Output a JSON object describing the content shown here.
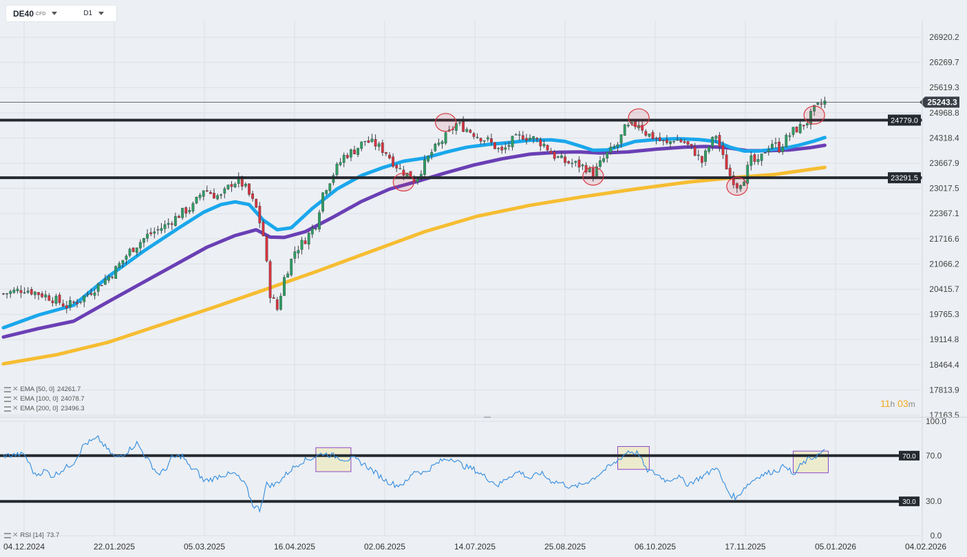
{
  "toolbar": {
    "symbol": "DE40",
    "symbol_tag": "CFD",
    "timeframe": "D1"
  },
  "price_panel": {
    "y_ticks": [
      "26920.2",
      "26269.7",
      "25619.3",
      "24968.8",
      "24318.4",
      "23667.9",
      "23017.5",
      "22367.1",
      "21716.6",
      "21066.2",
      "20415.7",
      "19765.3",
      "19114.8",
      "18464.4",
      "17813.9",
      "17163.5"
    ],
    "last_price": "25243.3",
    "levels": [
      {
        "value": 24779.0,
        "label": "24779.0"
      },
      {
        "value": 23291.5,
        "label": "23291.5"
      }
    ],
    "legend": [
      {
        "name": "EMA",
        "params": "[50,  0]",
        "value": "24261.7"
      },
      {
        "name": "EMA",
        "params": "[100,  0]",
        "value": "24078.7"
      },
      {
        "name": "EMA",
        "params": "[200,  0]",
        "value": "23496.3"
      }
    ],
    "countdown": {
      "hours": "11",
      "h_unit": "h",
      "minutes": "03",
      "m_unit": "m"
    }
  },
  "rsi_panel": {
    "y_ticks": [
      "100.0",
      "70.0",
      "30.0",
      "0.0"
    ],
    "levels": [
      {
        "value": 70,
        "label": "70.0"
      },
      {
        "value": 30,
        "label": "30.0"
      }
    ],
    "legend": {
      "name": "RSI",
      "params": "[14]",
      "value": "73.7"
    }
  },
  "x_ticks": [
    "04.12.2024",
    "22.01.2025",
    "05.03.2025",
    "16.04.2025",
    "02.06.2025",
    "14.07.2025",
    "25.08.2025",
    "06.10.2025",
    "17.11.2025",
    "05.01.2026",
    "04.02.2026"
  ],
  "colors": {
    "ema50": "#1aa7ec",
    "ema100": "#6a3fb5",
    "ema200": "#f6bd32",
    "candle_up": "#2e9e63",
    "candle_down": "#d8343f",
    "rsi": "#2f8ce0",
    "level_line": "#252a30",
    "marker_circle": "#d8343f",
    "marker_box": "#8a47c9"
  },
  "chart_data": {
    "type": "candlestick",
    "x_range": [
      "04.12.2024",
      "04.02.2026"
    ],
    "ylim": [
      17163.5,
      27250
    ],
    "candle_path": [
      [
        0,
        20300
      ],
      [
        6,
        20420
      ],
      [
        12,
        20250
      ],
      [
        15,
        20130
      ],
      [
        18,
        19980
      ],
      [
        22,
        20150
      ],
      [
        26,
        20440
      ],
      [
        31,
        20820
      ],
      [
        36,
        21400
      ],
      [
        41,
        21800
      ],
      [
        46,
        22050
      ],
      [
        51,
        22400
      ],
      [
        54,
        22550
      ],
      [
        57,
        23000
      ],
      [
        60,
        22850
      ],
      [
        62,
        22800
      ],
      [
        65,
        23150
      ],
      [
        67,
        23220
      ],
      [
        69,
        23020
      ],
      [
        72,
        22500
      ],
      [
        74,
        21800
      ],
      [
        76,
        20300
      ],
      [
        78,
        19900
      ],
      [
        80,
        20700
      ],
      [
        83,
        21400
      ],
      [
        86,
        21700
      ],
      [
        89,
        22100
      ],
      [
        91,
        22900
      ],
      [
        94,
        23400
      ],
      [
        97,
        23850
      ],
      [
        100,
        24000
      ],
      [
        103,
        24250
      ],
      [
        106,
        24150
      ],
      [
        109,
        23950
      ],
      [
        111,
        23700
      ],
      [
        113,
        23500
      ],
      [
        115,
        23380
      ],
      [
        117,
        23250
      ],
      [
        119,
        23500
      ],
      [
        122,
        23950
      ],
      [
        125,
        24250
      ],
      [
        127,
        24450
      ],
      [
        129,
        24680
      ],
      [
        132,
        24550
      ],
      [
        135,
        24380
      ],
      [
        138,
        24250
      ],
      [
        140,
        24100
      ],
      [
        142,
        23950
      ],
      [
        145,
        24250
      ],
      [
        148,
        24380
      ],
      [
        151,
        24300
      ],
      [
        154,
        24150
      ],
      [
        157,
        23850
      ],
      [
        160,
        23700
      ],
      [
        163,
        23650
      ],
      [
        166,
        23550
      ],
      [
        168,
        23380
      ],
      [
        170,
        23650
      ],
      [
        172,
        23900
      ],
      [
        175,
        24150
      ],
      [
        177,
        24550
      ],
      [
        179,
        24620
      ],
      [
        181,
        24700
      ],
      [
        183,
        24450
      ],
      [
        186,
        24300
      ],
      [
        189,
        24150
      ],
      [
        191,
        24300
      ],
      [
        194,
        24200
      ],
      [
        197,
        23950
      ],
      [
        199,
        23700
      ],
      [
        201,
        24100
      ],
      [
        203,
        24400
      ],
      [
        205,
        23800
      ],
      [
        207,
        23350
      ],
      [
        209,
        23100
      ],
      [
        211,
        23300
      ],
      [
        213,
        23750
      ],
      [
        215,
        23650
      ],
      [
        217,
        24000
      ],
      [
        219,
        24200
      ],
      [
        221,
        24050
      ],
      [
        223,
        24300
      ],
      [
        225,
        24500
      ],
      [
        227,
        24600
      ],
      [
        229,
        24750
      ],
      [
        231,
        25050
      ],
      [
        233,
        25200
      ],
      [
        234,
        25243.3
      ]
    ],
    "series": [
      {
        "name": "EMA [50, 0]",
        "values": [
          [
            0,
            19420
          ],
          [
            10,
            19750
          ],
          [
            20,
            20000
          ],
          [
            30,
            20750
          ],
          [
            40,
            21400
          ],
          [
            50,
            22000
          ],
          [
            57,
            22400
          ],
          [
            62,
            22600
          ],
          [
            66,
            22670
          ],
          [
            70,
            22600
          ],
          [
            74,
            22200
          ],
          [
            78,
            21950
          ],
          [
            82,
            22000
          ],
          [
            88,
            22500
          ],
          [
            95,
            23000
          ],
          [
            102,
            23350
          ],
          [
            108,
            23550
          ],
          [
            114,
            23720
          ],
          [
            120,
            23800
          ],
          [
            126,
            23950
          ],
          [
            132,
            24080
          ],
          [
            138,
            24150
          ],
          [
            144,
            24200
          ],
          [
            150,
            24260
          ],
          [
            156,
            24270
          ],
          [
            160,
            24230
          ],
          [
            164,
            24120
          ],
          [
            168,
            24000
          ],
          [
            172,
            24010
          ],
          [
            176,
            24120
          ],
          [
            180,
            24230
          ],
          [
            186,
            24280
          ],
          [
            192,
            24300
          ],
          [
            198,
            24280
          ],
          [
            203,
            24230
          ],
          [
            207,
            24080
          ],
          [
            211,
            23980
          ],
          [
            215,
            23980
          ],
          [
            219,
            24020
          ],
          [
            223,
            24060
          ],
          [
            227,
            24140
          ],
          [
            231,
            24240
          ],
          [
            234,
            24330
          ]
        ]
      },
      {
        "name": "EMA [100, 0]",
        "values": [
          [
            0,
            19180
          ],
          [
            10,
            19400
          ],
          [
            20,
            19590
          ],
          [
            30,
            20100
          ],
          [
            40,
            20600
          ],
          [
            50,
            21100
          ],
          [
            58,
            21500
          ],
          [
            66,
            21800
          ],
          [
            72,
            21950
          ],
          [
            76,
            21760
          ],
          [
            80,
            21750
          ],
          [
            86,
            21900
          ],
          [
            94,
            22280
          ],
          [
            102,
            22680
          ],
          [
            110,
            23000
          ],
          [
            118,
            23200
          ],
          [
            126,
            23420
          ],
          [
            134,
            23620
          ],
          [
            142,
            23780
          ],
          [
            150,
            23900
          ],
          [
            158,
            23950
          ],
          [
            164,
            23960
          ],
          [
            170,
            23930
          ],
          [
            178,
            23960
          ],
          [
            186,
            24030
          ],
          [
            194,
            24080
          ],
          [
            200,
            24100
          ],
          [
            206,
            24070
          ],
          [
            212,
            23990
          ],
          [
            218,
            23990
          ],
          [
            224,
            24010
          ],
          [
            230,
            24070
          ],
          [
            234,
            24130
          ]
        ]
      },
      {
        "name": "EMA [200, 0]",
        "values": [
          [
            0,
            18490
          ],
          [
            15,
            18720
          ],
          [
            30,
            19050
          ],
          [
            45,
            19500
          ],
          [
            60,
            19950
          ],
          [
            75,
            20420
          ],
          [
            90,
            20900
          ],
          [
            105,
            21400
          ],
          [
            120,
            21900
          ],
          [
            135,
            22300
          ],
          [
            150,
            22580
          ],
          [
            165,
            22800
          ],
          [
            180,
            23000
          ],
          [
            195,
            23180
          ],
          [
            210,
            23310
          ],
          [
            220,
            23380
          ],
          [
            234,
            23560
          ]
        ]
      }
    ],
    "markers": [
      {
        "type": "circle",
        "x": 114,
        "y": 23180
      },
      {
        "type": "circle",
        "x": 126,
        "y": 24720
      },
      {
        "type": "circle",
        "x": 168,
        "y": 23330
      },
      {
        "type": "circle",
        "x": 181,
        "y": 24840
      },
      {
        "type": "circle",
        "x": 209,
        "y": 23070
      },
      {
        "type": "circle",
        "x": 231,
        "y": 24910
      }
    ],
    "rsi": {
      "ylim": [
        0,
        100
      ],
      "values": [
        [
          0,
          70
        ],
        [
          6,
          71
        ],
        [
          9,
          53
        ],
        [
          12,
          57
        ],
        [
          14,
          52
        ],
        [
          17,
          58
        ],
        [
          20,
          64
        ],
        [
          23,
          80
        ],
        [
          27,
          85
        ],
        [
          30,
          74
        ],
        [
          32,
          68
        ],
        [
          35,
          73
        ],
        [
          38,
          81
        ],
        [
          41,
          67
        ],
        [
          44,
          54
        ],
        [
          46,
          57
        ],
        [
          48,
          68
        ],
        [
          51,
          70
        ],
        [
          53,
          60
        ],
        [
          55,
          57
        ],
        [
          57,
          48
        ],
        [
          60,
          50
        ],
        [
          62,
          53
        ],
        [
          66,
          54
        ],
        [
          69,
          44
        ],
        [
          71,
          27
        ],
        [
          73,
          23
        ],
        [
          75,
          45
        ],
        [
          77,
          44
        ],
        [
          79,
          49
        ],
        [
          82,
          58
        ],
        [
          85,
          65
        ],
        [
          88,
          68
        ],
        [
          91,
          72
        ],
        [
          94,
          70
        ],
        [
          97,
          67
        ],
        [
          100,
          67
        ],
        [
          103,
          62
        ],
        [
          106,
          55
        ],
        [
          109,
          48
        ],
        [
          112,
          44
        ],
        [
          115,
          47
        ],
        [
          117,
          57
        ],
        [
          120,
          55
        ],
        [
          122,
          60
        ],
        [
          125,
          66
        ],
        [
          128,
          68
        ],
        [
          131,
          61
        ],
        [
          134,
          58
        ],
        [
          138,
          50
        ],
        [
          141,
          44
        ],
        [
          144,
          52
        ],
        [
          147,
          56
        ],
        [
          150,
          50
        ],
        [
          153,
          55
        ],
        [
          156,
          48
        ],
        [
          159,
          46
        ],
        [
          162,
          42
        ],
        [
          165,
          45
        ],
        [
          168,
          50
        ],
        [
          171,
          57
        ],
        [
          174,
          63
        ],
        [
          178,
          74
        ],
        [
          181,
          72
        ],
        [
          183,
          58
        ],
        [
          186,
          54
        ],
        [
          189,
          48
        ],
        [
          192,
          52
        ],
        [
          195,
          45
        ],
        [
          198,
          50
        ],
        [
          201,
          55
        ],
        [
          203,
          61
        ],
        [
          205,
          47
        ],
        [
          207,
          36
        ],
        [
          209,
          33
        ],
        [
          211,
          42
        ],
        [
          213,
          47
        ],
        [
          215,
          52
        ],
        [
          218,
          55
        ],
        [
          221,
          58
        ],
        [
          223,
          62
        ],
        [
          225,
          52
        ],
        [
          227,
          61
        ],
        [
          229,
          66
        ],
        [
          231,
          69
        ],
        [
          233,
          72
        ],
        [
          234,
          73.7
        ]
      ],
      "boxes": [
        {
          "x0": 89,
          "x1": 99,
          "y0": 56,
          "y1": 77
        },
        {
          "x0": 175,
          "x1": 184,
          "y0": 58,
          "y1": 78
        },
        {
          "x0": 225,
          "x1": 235,
          "y0": 55,
          "y1": 74
        }
      ]
    }
  }
}
